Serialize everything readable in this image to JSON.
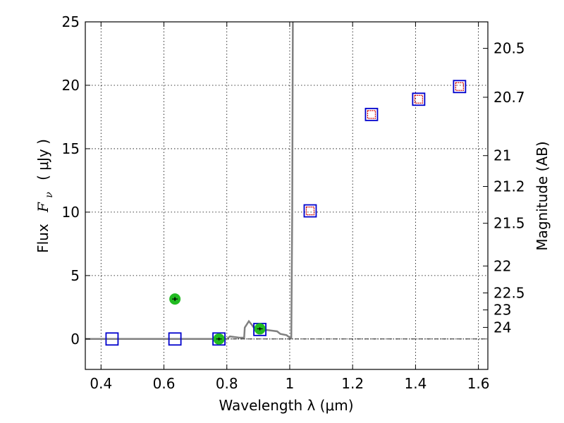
{
  "chart_data": {
    "type": "scatter",
    "xlabel": "Wavelength  λ (μm)",
    "ylabel_prefix": "Flux",
    "ylabel_var": "F",
    "ylabel_sub": "ν",
    "ylabel_unit": "( μJy )",
    "y2label": "Magnitude (AB)",
    "xlim": [
      0.35,
      1.63
    ],
    "ylim": [
      -2.4,
      25
    ],
    "x_ticks": [
      0.4,
      0.6,
      0.8,
      1.0,
      1.2,
      1.4,
      1.6
    ],
    "x_tick_labels": [
      "0.4",
      "0.6",
      "0.8",
      "1",
      "1.2",
      "1.4",
      "1.6"
    ],
    "y_ticks": [
      0,
      5,
      10,
      15,
      20,
      25
    ],
    "y_tick_labels": [
      "0",
      "5",
      "10",
      "15",
      "20",
      "25"
    ],
    "mag_ticks": [
      20.5,
      20.7,
      21,
      21.2,
      21.5,
      22,
      22.5,
      23,
      24
    ],
    "mag_tick_labels": [
      "20.5",
      "20.7",
      "21",
      "21.2",
      "21.5",
      "22",
      "22.5",
      "23",
      "24"
    ],
    "grid": true,
    "zero_line": true,
    "series": [
      {
        "type": "line",
        "color": "#808080",
        "x": [
          0.35,
          0.8,
          0.81,
          0.84,
          0.855,
          0.857,
          0.87,
          0.88,
          0.89,
          0.9,
          0.93,
          0.96,
          0.97,
          0.99,
          1.0,
          1.005,
          1.008,
          1.01
        ],
        "y": [
          0,
          0,
          0.2,
          0.1,
          0.1,
          0.9,
          1.4,
          1.1,
          0.75,
          0.8,
          0.7,
          0.6,
          0.4,
          0.3,
          0.1,
          0.1,
          10,
          25
        ]
      },
      {
        "type": "open-square",
        "color": "#0000cc",
        "x": [
          0.435,
          0.635,
          0.775,
          0.905,
          1.065,
          1.26,
          1.41,
          1.54
        ],
        "y": [
          0,
          0,
          0,
          0.75,
          10.1,
          17.7,
          18.9,
          19.9
        ]
      },
      {
        "type": "open-square-small",
        "color": "#cc0000",
        "x": [
          1.065,
          1.26,
          1.41,
          1.54
        ],
        "y": [
          10.1,
          17.7,
          18.9,
          19.9
        ]
      },
      {
        "type": "filled-circle",
        "color": "#22bb22",
        "x": [
          0.635,
          0.775,
          0.905
        ],
        "y": [
          3.15,
          0.0,
          0.8
        ],
        "yerr": [
          0.15,
          0.1,
          0.12
        ]
      }
    ]
  }
}
